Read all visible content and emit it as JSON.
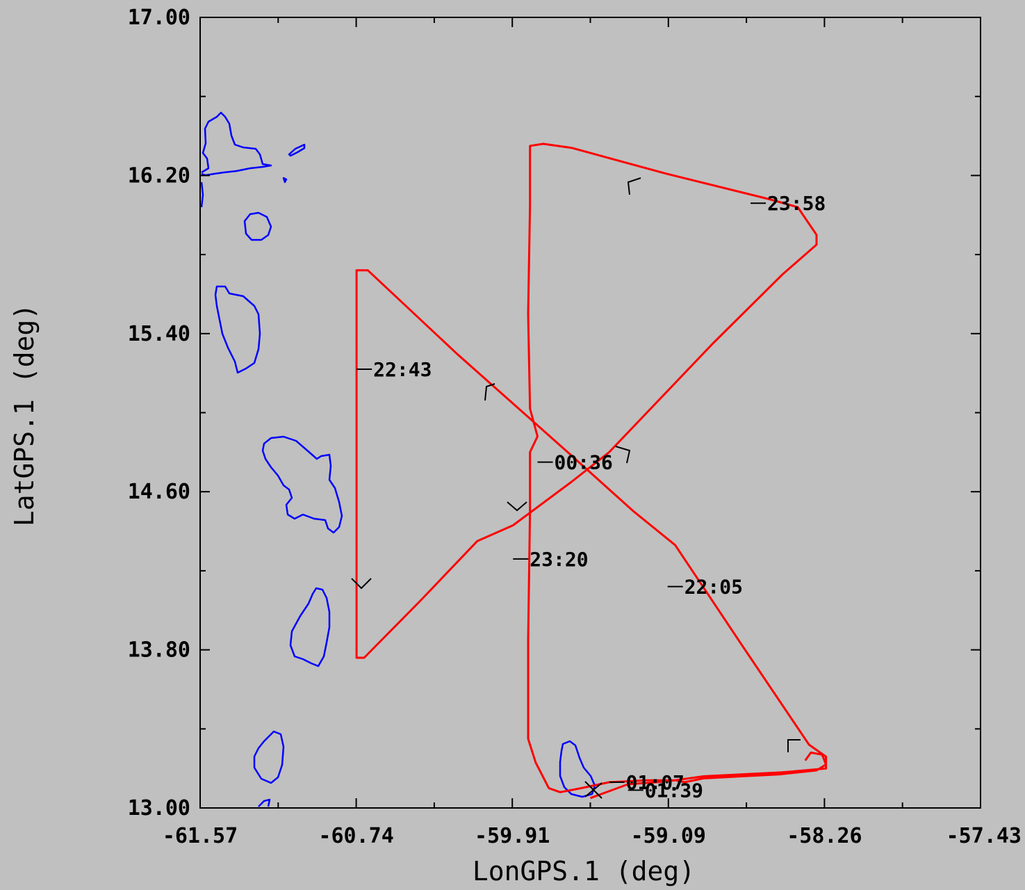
{
  "colors": {
    "background": "#c0c0c0",
    "track": "#ff0000",
    "coastline": "#0000ff",
    "axes": "#000000"
  },
  "chart_data": {
    "type": "line",
    "title": "",
    "xlabel": "LonGPS.1 (deg)",
    "ylabel": "LatGPS.1 (deg)",
    "xlim": [
      -61.57,
      -57.43
    ],
    "ylim": [
      13.0,
      17.0
    ],
    "grid": false,
    "x_ticks": [
      "-61.57",
      "-60.74",
      "-59.91",
      "-59.09",
      "-58.26",
      "-57.43"
    ],
    "y_ticks": [
      "13.00",
      "13.80",
      "14.60",
      "15.40",
      "16.20",
      "17.00"
    ],
    "series": [
      {
        "color": "#ff0000",
        "points": [
          [
            -59.5,
            13.05
          ],
          [
            -59.3,
            13.12
          ],
          [
            -59.15,
            13.13
          ],
          [
            -59.05,
            13.14
          ],
          [
            -58.9,
            13.16
          ],
          [
            -58.7,
            13.17
          ],
          [
            -58.48,
            13.18
          ],
          [
            -58.25,
            13.2
          ],
          [
            -58.25,
            13.26
          ],
          [
            -58.34,
            13.32
          ],
          [
            -58.7,
            13.83
          ],
          [
            -59.05,
            14.33
          ],
          [
            -59.27,
            14.5
          ],
          [
            -59.62,
            14.8
          ],
          [
            -60.21,
            15.3
          ],
          [
            -60.68,
            15.72
          ],
          [
            -60.74,
            15.72
          ],
          [
            -60.74,
            15.25
          ],
          [
            -60.74,
            14.6
          ],
          [
            -60.74,
            14.05
          ],
          [
            -60.74,
            13.76
          ],
          [
            -60.7,
            13.76
          ],
          [
            -60.4,
            14.05
          ],
          [
            -60.1,
            14.35
          ],
          [
            -59.91,
            14.43
          ],
          [
            -59.6,
            14.65
          ],
          [
            -59.4,
            14.8
          ],
          [
            -58.85,
            15.35
          ],
          [
            -58.48,
            15.7
          ],
          [
            -58.3,
            15.85
          ],
          [
            -58.3,
            15.9
          ],
          [
            -58.4,
            16.04
          ],
          [
            -58.55,
            16.08
          ],
          [
            -59.1,
            16.21
          ],
          [
            -59.6,
            16.34
          ],
          [
            -59.75,
            16.36
          ],
          [
            -59.82,
            16.35
          ],
          [
            -59.82,
            16.05
          ],
          [
            -59.83,
            15.5
          ],
          [
            -59.82,
            15.02
          ],
          [
            -59.78,
            14.88
          ],
          [
            -59.82,
            14.8
          ],
          [
            -59.82,
            14.5
          ],
          [
            -59.83,
            13.85
          ],
          [
            -59.83,
            13.35
          ],
          [
            -59.79,
            13.23
          ],
          [
            -59.72,
            13.1
          ],
          [
            -59.66,
            13.08
          ],
          [
            -59.55,
            13.1
          ],
          [
            -59.4,
            13.13
          ],
          [
            -59.2,
            13.14
          ],
          [
            -59.05,
            13.14
          ],
          [
            -59.0,
            13.13
          ],
          [
            -58.9,
            13.15
          ],
          [
            -58.7,
            13.16
          ],
          [
            -58.5,
            13.17
          ],
          [
            -58.3,
            13.19
          ],
          [
            -58.25,
            13.22
          ],
          [
            -58.27,
            13.27
          ],
          [
            -58.33,
            13.28
          ],
          [
            -58.36,
            13.24
          ]
        ]
      }
    ],
    "annotations": [
      {
        "text": "22:05",
        "x": -59.09,
        "y": 14.12
      },
      {
        "text": "22:43",
        "x": -60.74,
        "y": 15.22
      },
      {
        "text": "23:20",
        "x": -59.91,
        "y": 14.26
      },
      {
        "text": "23:58",
        "x": -58.65,
        "y": 16.06
      },
      {
        "text": "00:36",
        "x": -59.78,
        "y": 14.75
      },
      {
        "text": "01:07",
        "x": -59.4,
        "y": 13.13
      },
      {
        "text": "01:39",
        "x": -59.3,
        "y": 13.09
      }
    ]
  }
}
